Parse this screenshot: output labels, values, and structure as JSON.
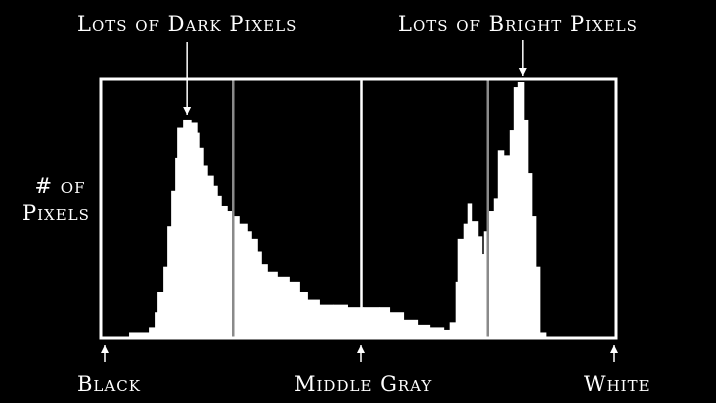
{
  "chart_data": {
    "type": "bar",
    "subtype": "histogram-step",
    "xlim": [
      0,
      255
    ],
    "ylim": [
      0,
      100
    ],
    "grid": false,
    "ylabel_lines": [
      "# of",
      "Pixels"
    ],
    "x_endpoint_labels": {
      "left": "Black",
      "middle": "Middle Gray",
      "right": "White"
    },
    "annotations": [
      {
        "text": "Lots of Dark Pixels",
        "points_to_level": 41
      },
      {
        "text": "Lots of Bright Pixels",
        "points_to_level": 209
      }
    ],
    "vertical_markers": [
      {
        "level": 65,
        "color": "#8a8a8a"
      },
      {
        "level": 129,
        "color": "#ffffff"
      },
      {
        "level": 192,
        "color": "#8a8a8a"
      }
    ],
    "steps": [
      [
        0,
        0
      ],
      [
        13,
        1
      ],
      [
        23,
        3
      ],
      [
        26,
        9
      ],
      [
        27,
        17
      ],
      [
        30,
        27
      ],
      [
        32,
        43
      ],
      [
        34,
        57
      ],
      [
        36,
        70
      ],
      [
        37,
        82
      ],
      [
        40,
        85
      ],
      [
        44,
        84
      ],
      [
        47,
        80
      ],
      [
        48,
        74
      ],
      [
        50,
        67
      ],
      [
        52,
        63
      ],
      [
        55,
        59
      ],
      [
        57,
        55
      ],
      [
        59,
        51
      ],
      [
        62,
        49
      ],
      [
        65,
        47
      ],
      [
        68,
        44
      ],
      [
        72,
        41
      ],
      [
        74,
        38
      ],
      [
        77,
        33
      ],
      [
        79,
        28
      ],
      [
        82,
        25
      ],
      [
        87,
        23
      ],
      [
        93,
        21
      ],
      [
        98,
        17
      ],
      [
        102,
        14
      ],
      [
        108,
        12
      ],
      [
        115,
        12
      ],
      [
        122,
        11
      ],
      [
        130,
        11
      ],
      [
        138,
        11
      ],
      [
        143,
        9
      ],
      [
        150,
        6
      ],
      [
        157,
        4
      ],
      [
        163,
        3
      ],
      [
        170,
        2
      ],
      [
        173,
        5
      ],
      [
        176,
        21
      ],
      [
        177,
        38
      ],
      [
        180,
        44
      ],
      [
        182,
        52
      ],
      [
        184,
        45
      ],
      [
        187,
        39
      ],
      [
        189,
        32
      ],
      [
        190,
        41
      ],
      [
        192,
        49
      ],
      [
        195,
        54
      ],
      [
        197,
        73
      ],
      [
        200,
        71
      ],
      [
        203,
        81
      ],
      [
        205,
        98
      ],
      [
        207,
        100
      ],
      [
        210,
        85
      ],
      [
        212,
        64
      ],
      [
        214,
        47
      ],
      [
        216,
        27
      ],
      [
        218,
        1
      ],
      [
        221,
        0
      ]
    ],
    "colors": {
      "background": "#000000",
      "fill": "#ffffff",
      "frame": "#ffffff"
    }
  }
}
